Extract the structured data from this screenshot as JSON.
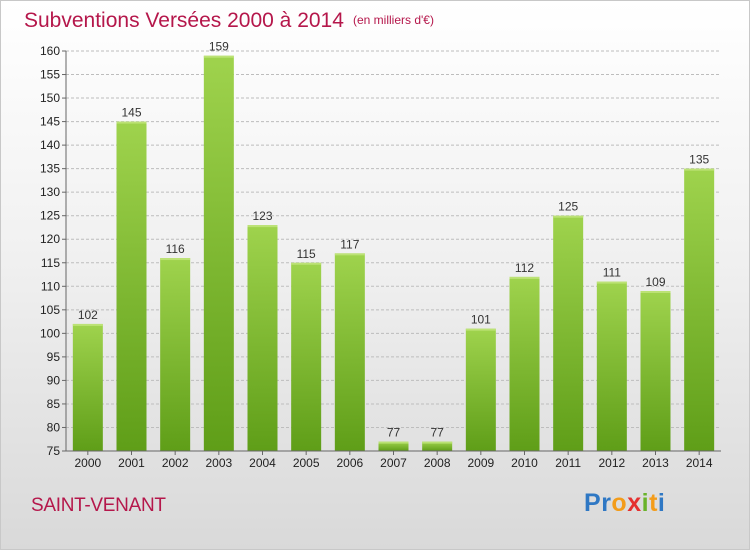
{
  "header": {
    "title": "Subventions Versées 2000 à 2014",
    "subtitle": "(en milliers d'€)"
  },
  "footer": {
    "commune": "SAINT-VENANT",
    "logo_letters": [
      {
        "char": "P",
        "color": "#2f78c4"
      },
      {
        "char": "r",
        "color": "#2f78c4"
      },
      {
        "char": "o",
        "color": "#f39c1a"
      },
      {
        "char": "x",
        "color": "#e5302f"
      },
      {
        "char": "i",
        "color": "#69b32a"
      },
      {
        "char": "t",
        "color": "#f39c1a"
      },
      {
        "char": "i",
        "color": "#2f78c4"
      }
    ]
  },
  "colors": {
    "bar_light": "#9fd34d",
    "bar_dark": "#5f9e18",
    "gridline": "#bdbdbd",
    "axis": "#666666",
    "title": "#b5174b"
  },
  "chart_data": {
    "type": "bar",
    "categories": [
      "2000",
      "2001",
      "2002",
      "2003",
      "2004",
      "2005",
      "2006",
      "2007",
      "2008",
      "2009",
      "2010",
      "2011",
      "2012",
      "2013",
      "2014"
    ],
    "values": [
      102,
      145,
      116,
      159,
      123,
      115,
      117,
      77,
      77,
      101,
      112,
      125,
      111,
      109,
      135
    ],
    "ylim": [
      75,
      160
    ],
    "ytick_step": 5,
    "grid": true,
    "data_labels": true
  }
}
